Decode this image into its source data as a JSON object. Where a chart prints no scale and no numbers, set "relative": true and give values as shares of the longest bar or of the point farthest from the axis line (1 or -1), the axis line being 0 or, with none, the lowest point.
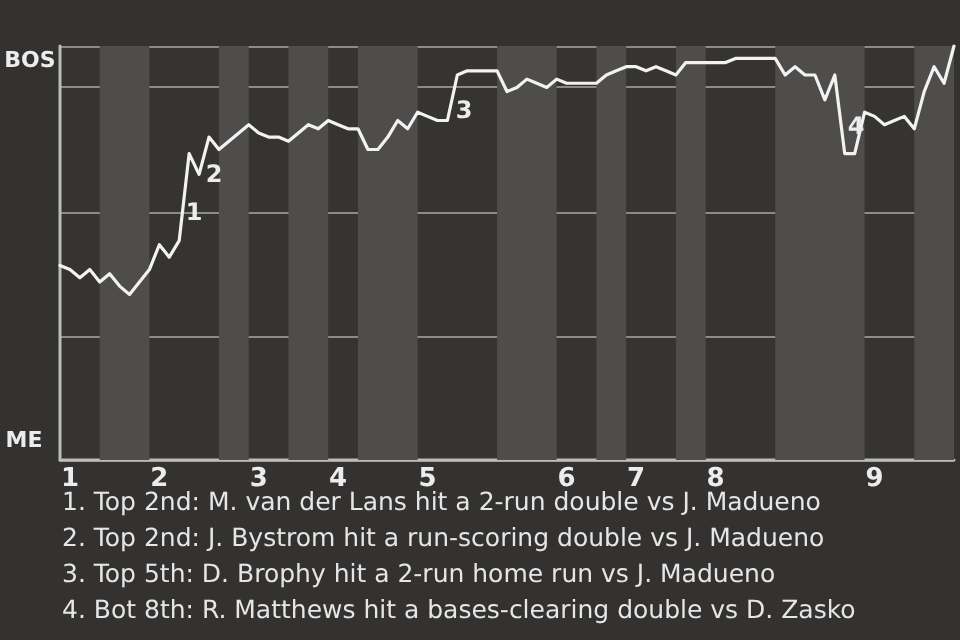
{
  "chart_data": {
    "type": "line",
    "relative": true,
    "categories": [
      null,
      "1",
      null,
      null,
      null,
      null,
      null,
      null,
      null,
      null,
      "2",
      null,
      null,
      null,
      null,
      null,
      null,
      null,
      null,
      null,
      "3",
      null,
      null,
      null,
      null,
      null,
      null,
      null,
      "4",
      null,
      null,
      null,
      null,
      null,
      null,
      null,
      null,
      "5",
      null,
      null,
      null,
      null,
      null,
      null,
      null,
      null,
      null,
      null,
      null,
      null,
      null,
      "6",
      null,
      null,
      null,
      null,
      null,
      null,
      "7",
      null,
      null,
      null,
      null,
      null,
      null,
      null,
      "8",
      null,
      null,
      null,
      null,
      null,
      null,
      null,
      null,
      null,
      null,
      null,
      null,
      null,
      null,
      null,
      "9",
      null,
      null,
      null,
      null,
      null,
      null,
      null,
      null
    ],
    "series": [
      {
        "color": "#f2f2f2",
        "values": [
          0.47,
          0.46,
          0.44,
          0.46,
          0.43,
          0.45,
          0.42,
          0.4,
          0.43,
          0.46,
          0.52,
          0.49,
          0.53,
          0.74,
          0.69,
          0.78,
          0.75,
          0.77,
          0.79,
          0.81,
          0.79,
          0.78,
          0.78,
          0.77,
          0.79,
          0.81,
          0.8,
          0.82,
          0.81,
          0.8,
          0.8,
          0.75,
          0.75,
          0.78,
          0.82,
          0.8,
          0.84,
          0.83,
          0.82,
          0.82,
          0.93,
          0.94,
          0.94,
          0.94,
          0.94,
          0.89,
          0.9,
          0.92,
          0.91,
          0.9,
          0.92,
          0.91,
          0.91,
          0.91,
          0.91,
          0.93,
          0.94,
          0.95,
          0.95,
          0.94,
          0.95,
          0.94,
          0.93,
          0.96,
          0.96,
          0.96,
          0.96,
          0.96,
          0.97,
          0.97,
          0.97,
          0.97,
          0.97,
          0.93,
          0.95,
          0.93,
          0.93,
          0.87,
          0.93,
          0.74,
          0.74,
          0.84,
          0.83,
          0.81,
          0.82,
          0.83,
          0.8,
          0.89,
          0.95,
          0.91,
          1
        ]
      }
    ],
    "grid": "y",
    "marker": "none",
    "annotations": [
      "BOS",
      "ME",
      "1",
      "2",
      "3",
      "4",
      "1. Top 2nd: M. van der Lans hit a 2-run double vs J. Madueno",
      "2. Top 2nd: J. Bystrom hit a run-scoring double vs J. Madueno",
      "3. Top 5th: D. Brophy hit a 2-run home run vs J. Madueno",
      "4. Bot 8th: R. Matthews hit a bases-clearing double vs D. Zasko"
    ]
  }
}
